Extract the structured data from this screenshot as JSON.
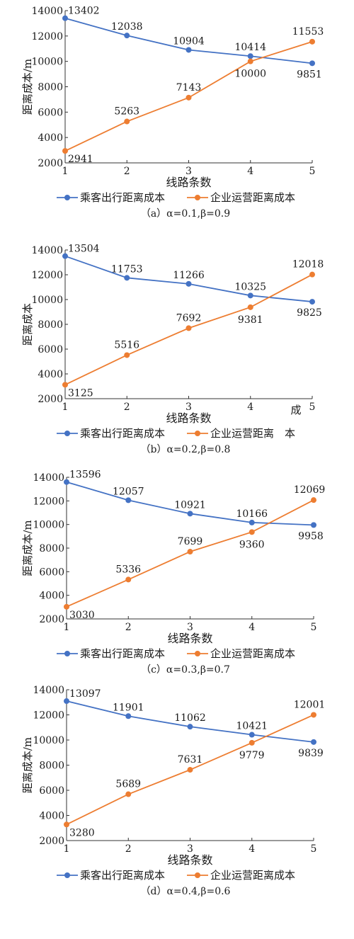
{
  "colors": {
    "series1": "#4472c4",
    "series2": "#ed7d31",
    "axis": "#333333",
    "text": "#1a1a1a"
  },
  "chart_data": [
    {
      "type": "line",
      "caption": "（a）α=0.1,β=0.9",
      "xlabel": "线路条数",
      "ylabel": "距离成本/m",
      "x": [
        1,
        2,
        3,
        4,
        5
      ],
      "ylim": [
        2000,
        14000
      ],
      "yticks": [
        2000,
        4000,
        6000,
        8000,
        10000,
        12000,
        14000
      ],
      "grid": false,
      "legend_position": "bottom",
      "series": [
        {
          "name": "乘客出行距离成本",
          "values": [
            13402,
            12038,
            10904,
            10414,
            9851
          ]
        },
        {
          "name": "企业运营距离成本",
          "values": [
            2941,
            5263,
            7143,
            10000,
            11553
          ]
        }
      ]
    },
    {
      "type": "line",
      "caption": "（b）α=0.2,β=0.8",
      "xlabel": "线路条数",
      "ylabel": "距离成本",
      "x": [
        1,
        2,
        3,
        4,
        5
      ],
      "ylim": [
        2000,
        14000
      ],
      "yticks": [
        2000,
        4000,
        6000,
        8000,
        10000,
        12000,
        14000
      ],
      "grid": false,
      "legend_position": "bottom",
      "stray_text": "成",
      "series": [
        {
          "name": "乘客出行距离成本",
          "values": [
            13504,
            11753,
            11266,
            10325,
            9825
          ]
        },
        {
          "name": "企业运营距离　本",
          "values": [
            3125,
            5516,
            7692,
            9381,
            12018
          ]
        }
      ]
    },
    {
      "type": "line",
      "caption": "（c）α=0.3,β=0.7",
      "xlabel": "线路条数",
      "ylabel": "距离成本/m",
      "x": [
        1,
        2,
        3,
        4,
        5
      ],
      "ylim": [
        2000,
        14000
      ],
      "yticks": [
        2000,
        4000,
        6000,
        8000,
        10000,
        12000,
        14000
      ],
      "grid": false,
      "legend_position": "bottom",
      "series": [
        {
          "name": "乘客出行距离成本",
          "values": [
            13596,
            12057,
            10921,
            10166,
            9958
          ]
        },
        {
          "name": "企业运营距离成本",
          "values": [
            3030,
            5336,
            7699,
            9360,
            12069
          ]
        }
      ]
    },
    {
      "type": "line",
      "caption": "（d）α=0.4,β=0.6",
      "xlabel": "线路条数",
      "ylabel": "距离成本/m",
      "x": [
        1,
        2,
        3,
        4,
        5
      ],
      "ylim": [
        2000,
        14000
      ],
      "yticks": [
        2000,
        4000,
        6000,
        8000,
        10000,
        12000,
        14000
      ],
      "grid": false,
      "legend_position": "bottom",
      "series": [
        {
          "name": "乘客出行距离成本",
          "values": [
            13097,
            11901,
            11062,
            10421,
            9839
          ]
        },
        {
          "name": "企业运营距离成本",
          "values": [
            3280,
            5689,
            7631,
            9779,
            12001
          ]
        }
      ]
    }
  ]
}
